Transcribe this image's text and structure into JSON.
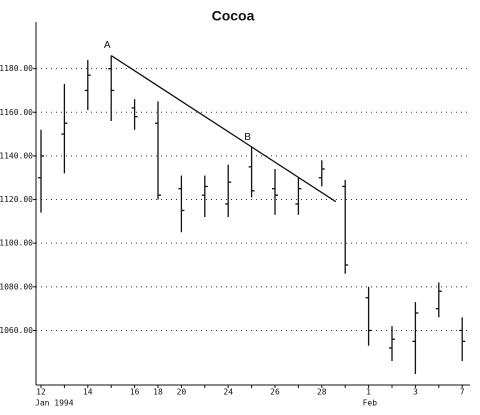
{
  "chart_data": {
    "type": "ohlc",
    "title": "Cocoa",
    "categories": [
      "12",
      null,
      "14",
      null,
      "16",
      "18",
      "20",
      null,
      "24",
      null,
      "26",
      null,
      "28",
      null,
      "1",
      null,
      "3",
      null,
      "7"
    ],
    "category_sublabels": [
      {
        "index": 0,
        "text": "Jan 1994"
      },
      {
        "index": 14,
        "text": "Feb"
      }
    ],
    "open": [
      1130,
      1150,
      1170,
      1180,
      1162,
      1155,
      1125,
      1122,
      1118,
      1135,
      1125,
      1118,
      1130,
      1126,
      1075,
      1052,
      1055,
      1070,
      1060
    ],
    "high": [
      1152,
      1173,
      1184,
      1186,
      1166,
      1165,
      1131,
      1131,
      1136,
      1144,
      1134,
      1130,
      1138,
      1129,
      1080,
      1062,
      1073,
      1082,
      1066
    ],
    "low": [
      1114,
      1132,
      1161,
      1156,
      1152,
      1120,
      1105,
      1112,
      1112,
      1121,
      1113,
      1113,
      1126,
      1086,
      1053,
      1046,
      1040,
      1066,
      1046
    ],
    "close": [
      1140,
      1155,
      1177,
      1170,
      1158,
      1122,
      1115,
      1126,
      1128,
      1124,
      1122,
      1125,
      1134,
      1090,
      1060,
      1056,
      1068,
      1078,
      1055
    ],
    "color": "#111111",
    "ylim": [
      1035,
      1200
    ],
    "yticks": [
      {
        "value": 1060,
        "label": "1060.00"
      },
      {
        "value": 1080,
        "label": "1080.00"
      },
      {
        "value": 1100,
        "label": "1100.00"
      },
      {
        "value": 1120,
        "label": "1120.00"
      },
      {
        "value": 1140,
        "label": "1140.00"
      },
      {
        "value": 1160,
        "label": "1160.00"
      },
      {
        "value": 1180,
        "label": "1180.00"
      }
    ],
    "grid": true,
    "trendline": {
      "x": [
        3,
        12.6
      ],
      "y": [
        1186,
        1119
      ]
    },
    "annotations": [
      {
        "text": "A",
        "x": 3,
        "y": 1186
      },
      {
        "text": "B",
        "x": 9,
        "y": 1144
      }
    ]
  }
}
